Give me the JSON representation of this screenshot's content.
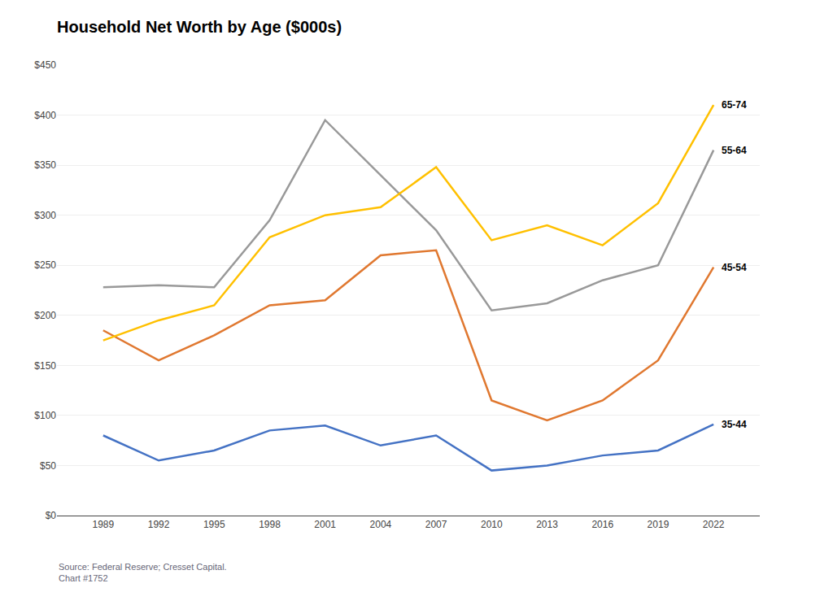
{
  "chart_data": {
    "type": "line",
    "title": "Household Net Worth by Age ($000s)",
    "source": "Source: Federal Reserve; Cresset Capital.\nChart #1752",
    "x": [
      1989,
      1992,
      1995,
      1998,
      2001,
      2004,
      2007,
      2010,
      2013,
      2016,
      2019,
      2022
    ],
    "series": [
      {
        "name": "35-44",
        "color": "#4472C4",
        "values": [
          80,
          55,
          65,
          85,
          90,
          70,
          80,
          45,
          50,
          60,
          65,
          91
        ]
      },
      {
        "name": "45-54",
        "color": "#E07830",
        "values": [
          185,
          155,
          180,
          210,
          215,
          260,
          265,
          115,
          95,
          115,
          155,
          248
        ]
      },
      {
        "name": "55-64",
        "color": "#999999",
        "values": [
          228,
          230,
          228,
          295,
          395,
          340,
          285,
          205,
          212,
          235,
          250,
          365
        ]
      },
      {
        "name": "65-74",
        "color": "#FFC000",
        "values": [
          175,
          195,
          210,
          278,
          300,
          308,
          348,
          275,
          290,
          270,
          312,
          410
        ]
      }
    ],
    "xlim": [
      1986.5,
      2024.5
    ],
    "xticks": [
      1989,
      1992,
      1995,
      1998,
      2001,
      2004,
      2007,
      2010,
      2013,
      2016,
      2019,
      2022
    ],
    "ylim": [
      0,
      450
    ],
    "yticks": [
      {
        "value": 0,
        "label": "$0"
      },
      {
        "value": 50,
        "label": "$50"
      },
      {
        "value": 100,
        "label": "$100"
      },
      {
        "value": 150,
        "label": "$150"
      },
      {
        "value": 200,
        "label": "$200"
      },
      {
        "value": 250,
        "label": "$250"
      },
      {
        "value": 300,
        "label": "$300"
      },
      {
        "value": 350,
        "label": "$350"
      },
      {
        "value": 400,
        "label": "$400"
      },
      {
        "value": 450,
        "label": "$450"
      }
    ],
    "grid": "y"
  }
}
